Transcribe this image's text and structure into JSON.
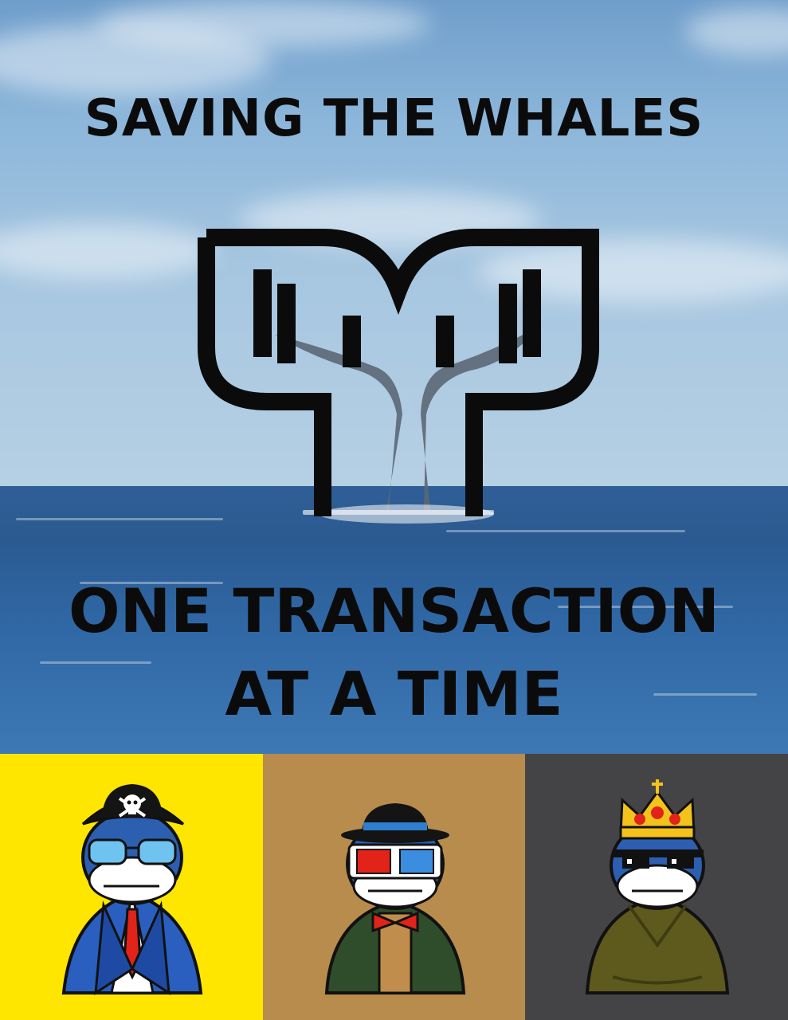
{
  "headline": "SAVING THE WHALES",
  "tagline_line1": "ONE TRANSACTION",
  "tagline_line2": "AT A TIME",
  "colors": {
    "panel_yellow": "#ffe600",
    "panel_tan": "#b88c4d",
    "panel_gray": "#444446",
    "text": "#0b0b0b"
  },
  "characters": [
    {
      "name": "pirate-whale",
      "hat": "pirate hat with skull",
      "eyewear": "blue aviator glasses",
      "outfit": "blue suit with red tie"
    },
    {
      "name": "fedora-whale",
      "hat": "black fedora",
      "eyewear": "3D glasses",
      "outfit": "green jacket with red bow tie"
    },
    {
      "name": "king-whale",
      "hat": "gold crown",
      "eyewear": "pixel sunglasses",
      "outfit": "olive sweater"
    }
  ]
}
